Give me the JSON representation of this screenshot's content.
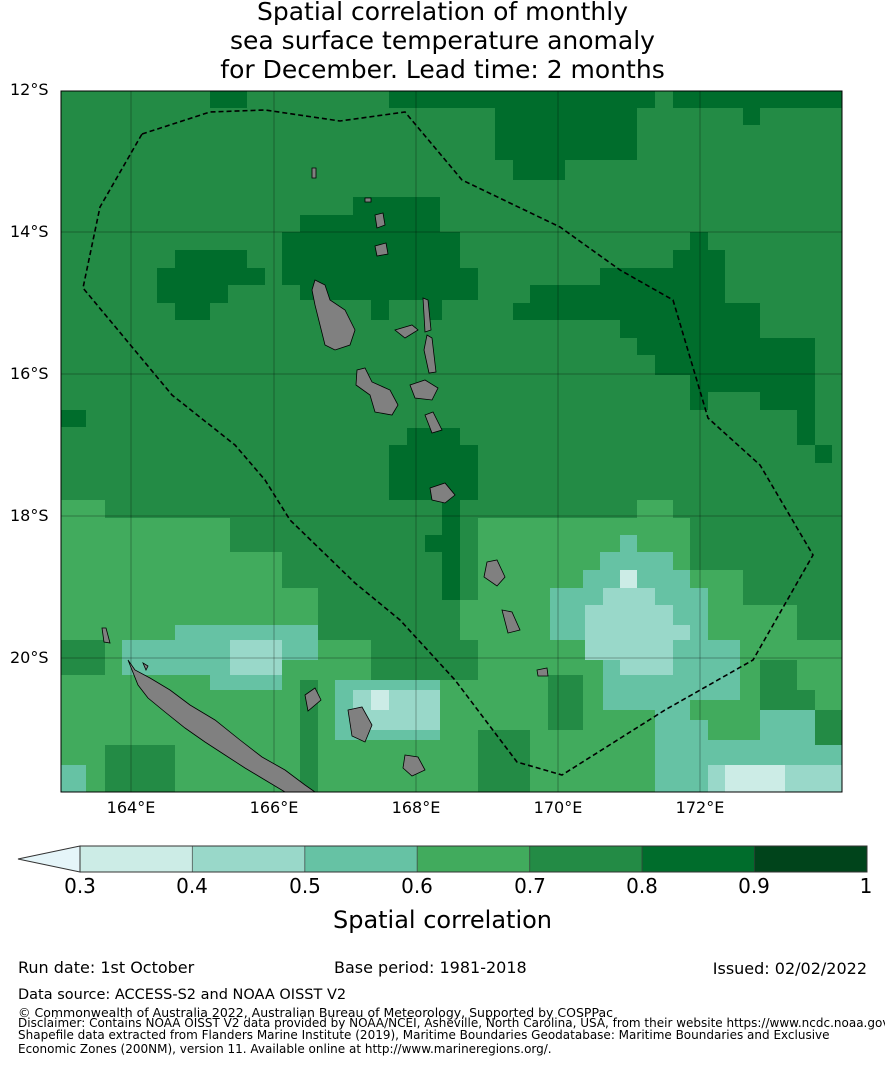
{
  "title": [
    "Spatial correlation of monthly",
    "sea surface temperature anomaly",
    "for December. Lead time: 2 months"
  ],
  "map": {
    "lat_labels": [
      "12°S",
      "14°S",
      "16°S",
      "18°S",
      "20°S"
    ],
    "lon_labels": [
      "164°E",
      "166°E",
      "168°E",
      "170°E",
      "172°E"
    ],
    "extent": {
      "lon": [
        163,
        174
      ],
      "lat": [
        -12,
        -22
      ]
    },
    "land_color": "#808080",
    "boundary": "dashed EEZ outline"
  },
  "colorbar": {
    "label": "Spatial correlation",
    "ticks": [
      "0.3",
      "0.4",
      "0.5",
      "0.6",
      "0.7",
      "0.8",
      "0.9",
      "1"
    ],
    "colors": [
      "#ccece6",
      "#99d8c9",
      "#66c2a4",
      "#41ab5d",
      "#238b45",
      "#006d2c",
      "#00441b"
    ],
    "under_color": "#e5f5f9"
  },
  "footer": {
    "run_date": "Run date: 1st October",
    "base_period": "Base period: 1981-2018",
    "issued": "Issued: 02/02/2022",
    "data_source": "Data source: ACCESS-S2 and NOAA OISST V2",
    "copyright": "© Commonwealth of Australia 2022, Australian Bureau of Meteorology, Supported by COSPPac",
    "disclaimer1": "Disclaimer: Contains NOAA OISST V2 data provided by NOAA/NCEI, Asheville, North Carolina, USA, from their website https://www.ncdc.noaa.gov",
    "disclaimer2": "Shapefile data extracted from Flanders Marine Institute (2019), Maritime Boundaries Geodatabase: Maritime Boundaries and Exclusive",
    "disclaimer3": "Economic Zones (200NM), version 11. Available online at http://www.marineregions.org/."
  }
}
